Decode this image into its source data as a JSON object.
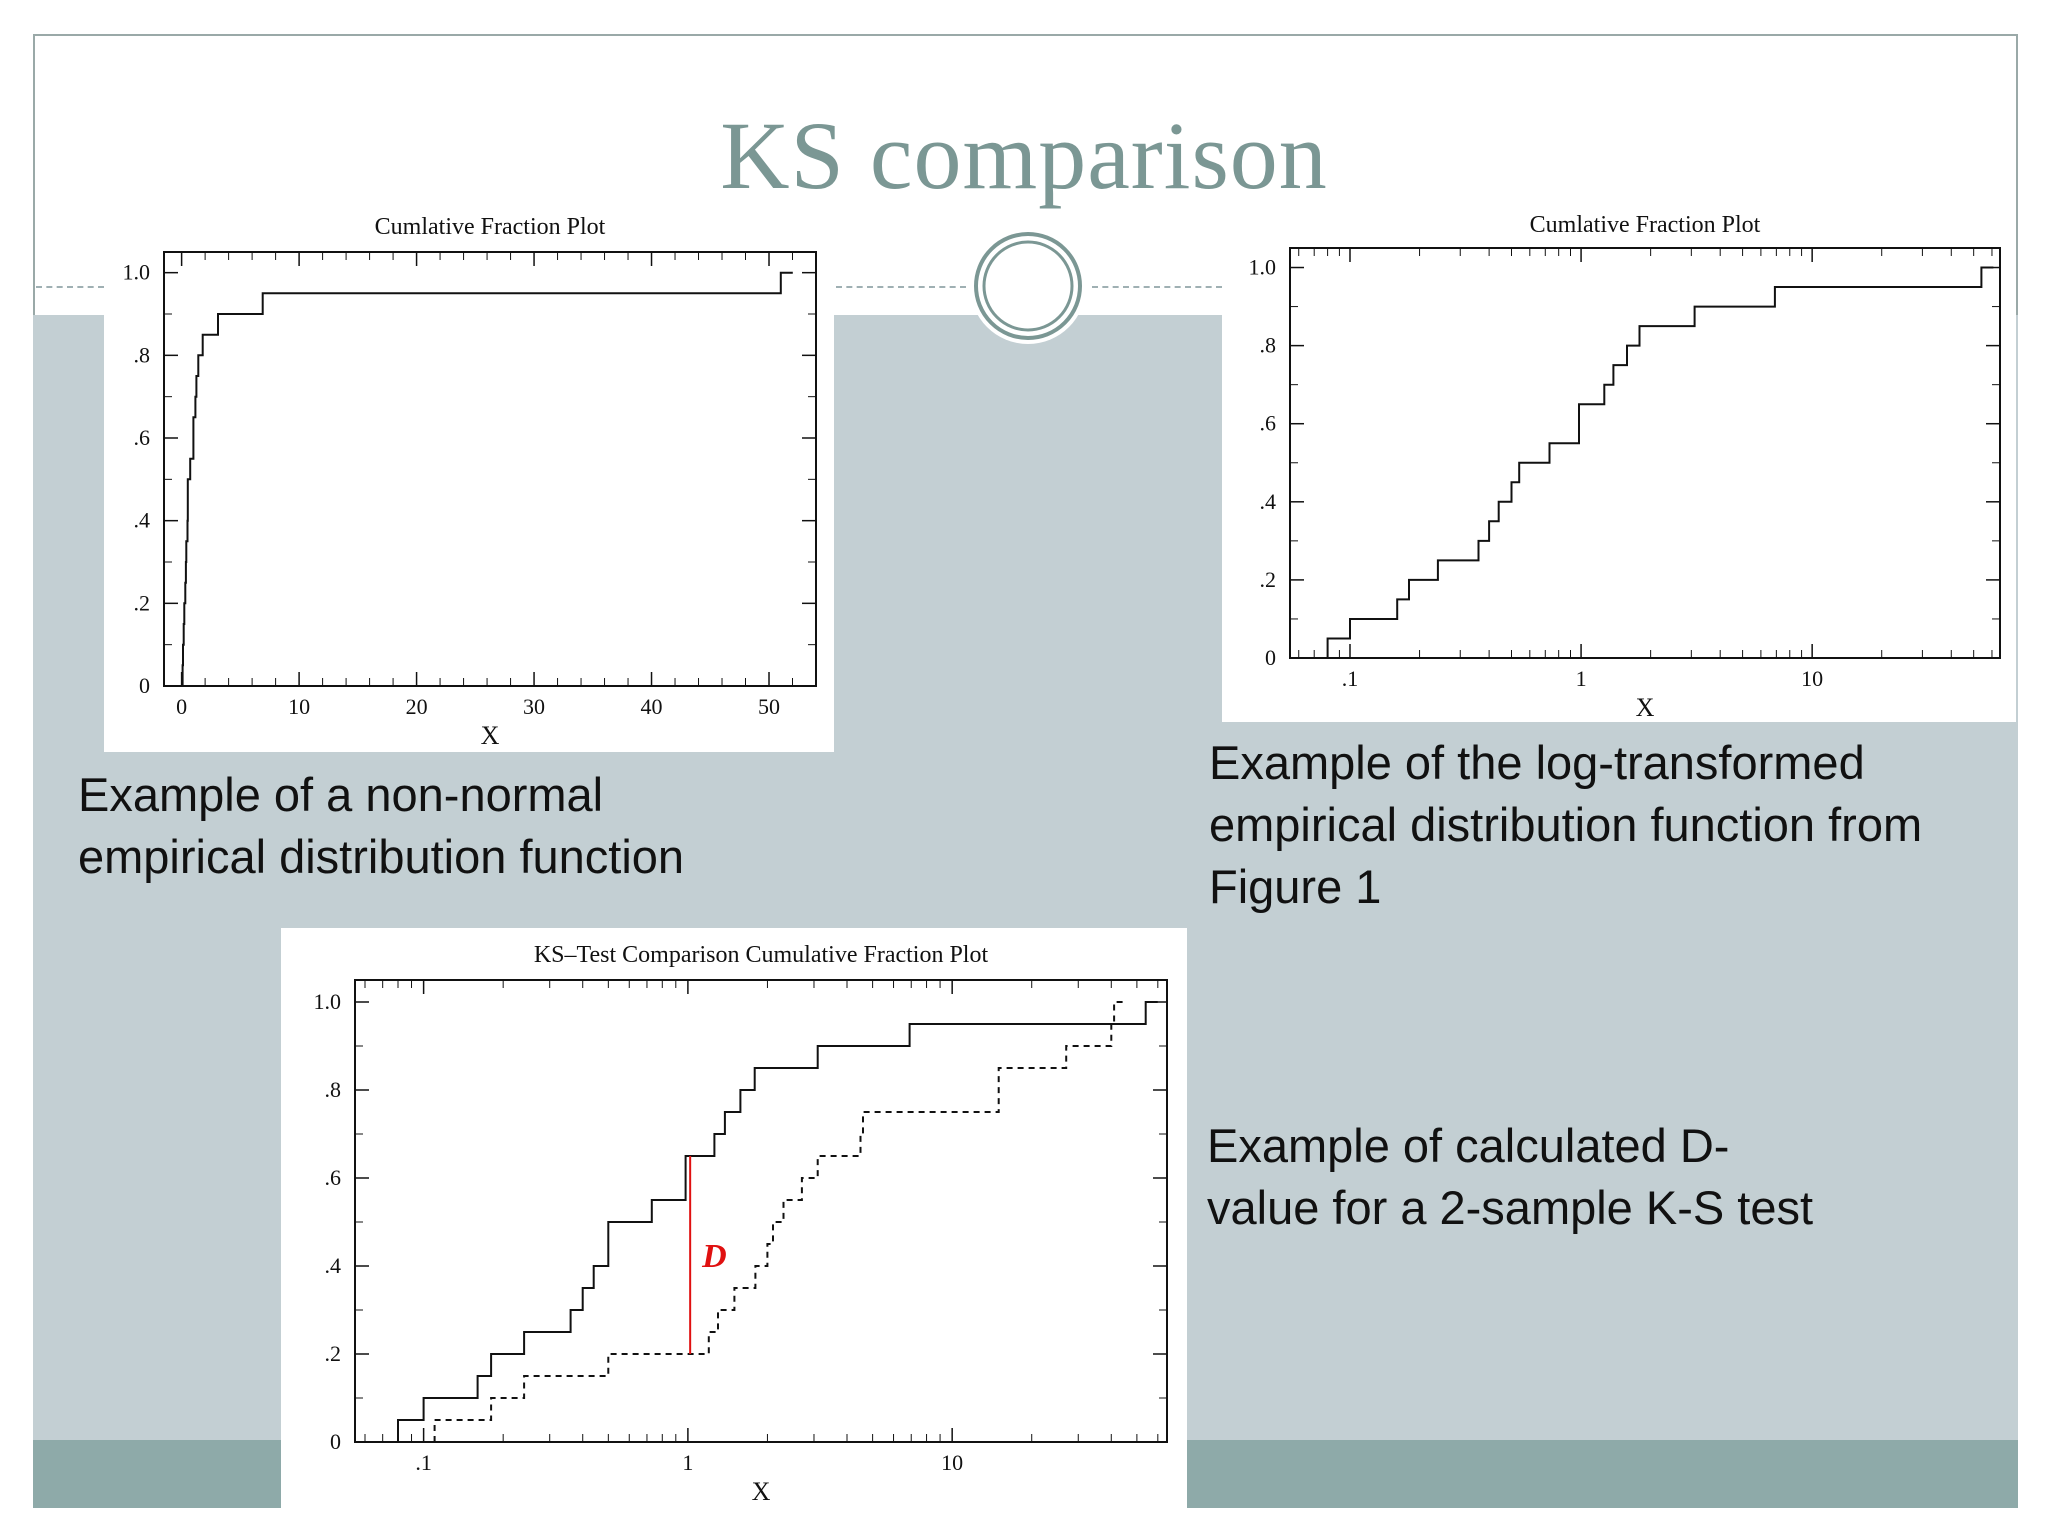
{
  "slide": {
    "title": "KS comparison",
    "colors": {
      "title": "#7b9794",
      "band": "#c3cfd3",
      "footer_band": "#8eaaa9",
      "border": "#9aa9a8",
      "d_line": "#e01010"
    }
  },
  "captions": {
    "chart1": [
      "Example of a non-normal",
      "empirical distribution function"
    ],
    "chart2": [
      "Example of the log-transformed",
      "empirical distribution function from",
      "Figure 1"
    ],
    "chart3": [
      "Example of calculated D-",
      "value for a 2-sample K-S test"
    ]
  },
  "chart_data": [
    {
      "type": "line",
      "step": true,
      "title": "Cumlative Fraction Plot",
      "xlabel": "X",
      "ylabel": "",
      "xscale": "linear",
      "xlim": [
        -1.5,
        54
      ],
      "ylim": [
        0,
        1.05
      ],
      "xticks": [
        0,
        10,
        20,
        30,
        40,
        50
      ],
      "xtick_labels": [
        "0",
        "10",
        "20",
        "30",
        "40",
        "50"
      ],
      "yticks": [
        0,
        0.2,
        0.4,
        0.6,
        0.8,
        1.0
      ],
      "ytick_labels": [
        "0",
        ".2",
        ".4",
        ".6",
        ".8",
        "1.0"
      ],
      "grid": false,
      "series": [
        {
          "dashed": false,
          "x": [
            0.08,
            0.12,
            0.18,
            0.23,
            0.31,
            0.36,
            0.4,
            0.5,
            0.53,
            0.73,
            1.0,
            1.17,
            1.26,
            1.42,
            1.54,
            1.79,
            3.1,
            6.9,
            51.0
          ],
          "y": [
            0.05,
            0.1,
            0.15,
            0.2,
            0.25,
            0.3,
            0.35,
            0.4,
            0.5,
            0.55,
            0.65,
            0.7,
            0.75,
            0.8,
            0.8,
            0.85,
            0.9,
            0.95,
            1.0
          ]
        }
      ]
    },
    {
      "type": "line",
      "step": true,
      "title": "Cumlative Fraction Plot",
      "xlabel": "X",
      "ylabel": "",
      "xscale": "log",
      "xlim": [
        0.055,
        65
      ],
      "ylim": [
        0,
        1.05
      ],
      "xticks": [
        0.1,
        1,
        10
      ],
      "xtick_labels": [
        ".1",
        "1",
        "10"
      ],
      "yticks": [
        0,
        0.2,
        0.4,
        0.6,
        0.8,
        1.0
      ],
      "ytick_labels": [
        "0",
        ".2",
        ".4",
        ".6",
        ".8",
        "1.0"
      ],
      "grid": false,
      "series": [
        {
          "dashed": false,
          "x": [
            0.08,
            0.1,
            0.16,
            0.18,
            0.24,
            0.36,
            0.4,
            0.44,
            0.5,
            0.54,
            0.73,
            0.98,
            1.26,
            1.38,
            1.58,
            1.79,
            3.1,
            6.9,
            54.0
          ],
          "y": [
            0.05,
            0.1,
            0.15,
            0.2,
            0.25,
            0.3,
            0.35,
            0.4,
            0.45,
            0.5,
            0.55,
            0.65,
            0.7,
            0.75,
            0.8,
            0.85,
            0.9,
            0.95,
            1.0
          ]
        }
      ]
    },
    {
      "type": "line",
      "step": true,
      "title": "KS–Test Comparison Cumulative Fraction Plot",
      "xlabel": "X",
      "ylabel": "",
      "xscale": "log",
      "xlim": [
        0.055,
        65
      ],
      "ylim": [
        0,
        1.05
      ],
      "xticks": [
        0.1,
        1,
        10
      ],
      "xtick_labels": [
        ".1",
        "1",
        "10"
      ],
      "yticks": [
        0,
        0.2,
        0.4,
        0.6,
        0.8,
        1.0
      ],
      "ytick_labels": [
        "0",
        ".2",
        ".4",
        ".6",
        ".8",
        "1.0"
      ],
      "grid": false,
      "series": [
        {
          "dashed": false,
          "x": [
            0.08,
            0.1,
            0.16,
            0.18,
            0.24,
            0.36,
            0.4,
            0.44,
            0.5,
            0.73,
            0.98,
            1.26,
            1.38,
            1.58,
            1.79,
            3.1,
            6.9,
            54.0
          ],
          "y": [
            0.05,
            0.1,
            0.15,
            0.2,
            0.25,
            0.3,
            0.35,
            0.4,
            0.5,
            0.55,
            0.65,
            0.7,
            0.75,
            0.8,
            0.85,
            0.9,
            0.95,
            1.0
          ]
        },
        {
          "dashed": true,
          "x": [
            0.11,
            0.18,
            0.24,
            0.5,
            1.2,
            1.3,
            1.5,
            1.8,
            2.0,
            2.1,
            2.3,
            2.7,
            3.1,
            4.5,
            4.6,
            15.0,
            27.0,
            40.0,
            41.0
          ],
          "y": [
            0.05,
            0.1,
            0.15,
            0.2,
            0.25,
            0.3,
            0.35,
            0.4,
            0.45,
            0.5,
            0.55,
            0.6,
            0.65,
            0.7,
            0.75,
            0.85,
            0.9,
            0.95,
            1.0
          ]
        }
      ],
      "annotations": [
        {
          "type": "vline",
          "label": "D",
          "x": 1.02,
          "y_from": 0.2,
          "y_to": 0.65,
          "color": "#e01010"
        }
      ]
    }
  ]
}
